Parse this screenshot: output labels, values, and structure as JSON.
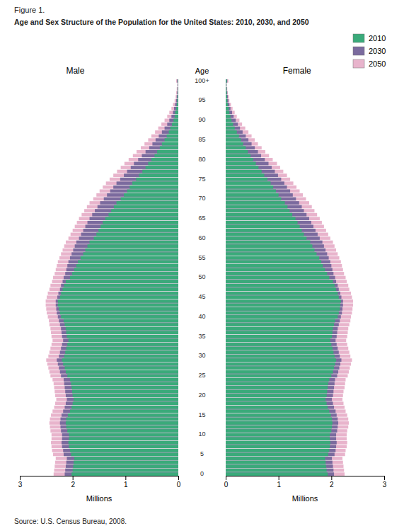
{
  "chart_data": [
    {
      "type": "bar",
      "orientation": "horizontal",
      "title": "Age and Sex Structure of the Population for the United States: 2010, 2030, and 2050",
      "annotations": [
        "Figure 1.",
        "Source: U.S. Census Bureau, 2008."
      ],
      "subtitle": "Male",
      "xlabel": "Millions",
      "ylabel": "Age",
      "xlim": [
        3,
        0
      ],
      "xticks": [
        0,
        1,
        2,
        3
      ],
      "legend": false,
      "categories": [
        "0",
        null,
        null,
        null,
        null,
        "5",
        null,
        null,
        null,
        null,
        "10",
        null,
        null,
        null,
        null,
        "15",
        null,
        null,
        null,
        null,
        "20",
        null,
        null,
        null,
        null,
        "25",
        null,
        null,
        null,
        null,
        "30",
        null,
        null,
        null,
        null,
        "35",
        null,
        null,
        null,
        null,
        "40",
        null,
        null,
        null,
        null,
        "45",
        null,
        null,
        null,
        null,
        "50",
        null,
        null,
        null,
        null,
        "55",
        null,
        null,
        null,
        null,
        "60",
        null,
        null,
        null,
        null,
        "65",
        null,
        null,
        null,
        null,
        "70",
        null,
        null,
        null,
        null,
        "75",
        null,
        null,
        null,
        null,
        "80",
        null,
        null,
        null,
        null,
        "85",
        null,
        null,
        null,
        null,
        "90",
        null,
        null,
        null,
        null,
        "95",
        null,
        null,
        null,
        null,
        "100+"
      ],
      "series": [
        {
          "color": "#3aaa7a",
          "values": [
            2.02,
            2.0,
            1.99,
            1.98,
            1.97,
            2.03,
            2.05,
            2.07,
            2.08,
            2.07,
            2.07,
            2.1,
            2.12,
            2.13,
            2.12,
            2.09,
            2.05,
            2.02,
            2.0,
            1.98,
            2.0,
            2.01,
            2.02,
            2.03,
            2.05,
            2.1,
            2.13,
            2.15,
            2.18,
            2.2,
            2.16,
            2.14,
            2.12,
            2.1,
            2.08,
            2.11,
            2.12,
            2.13,
            2.15,
            2.17,
            2.22,
            2.24,
            2.26,
            2.28,
            2.28,
            2.24,
            2.22,
            2.19,
            2.16,
            2.13,
            2.05,
            2.01,
            1.97,
            1.93,
            1.9,
            1.85,
            1.8,
            1.76,
            1.72,
            1.68,
            1.6,
            1.55,
            1.51,
            1.47,
            1.43,
            1.38,
            1.32,
            1.27,
            1.22,
            1.17,
            1.09,
            1.03,
            0.97,
            0.92,
            0.87,
            0.8,
            0.74,
            0.68,
            0.62,
            0.57,
            0.51,
            0.45,
            0.4,
            0.35,
            0.31,
            0.26,
            0.22,
            0.18,
            0.15,
            0.12,
            0.09,
            0.07,
            0.06,
            0.04,
            0.03,
            0.02,
            0.015,
            0.01,
            0.008,
            0.005,
            0.01
          ]
        },
        {
          "color": "#7b6b9e",
          "values": [
            2.15,
            2.14,
            2.13,
            2.12,
            2.11,
            2.17,
            2.18,
            2.2,
            2.21,
            2.2,
            2.2,
            2.22,
            2.23,
            2.24,
            2.23,
            2.21,
            2.18,
            2.15,
            2.13,
            2.11,
            2.13,
            2.14,
            2.15,
            2.16,
            2.17,
            2.22,
            2.24,
            2.26,
            2.28,
            2.3,
            2.26,
            2.24,
            2.22,
            2.2,
            2.18,
            2.2,
            2.21,
            2.22,
            2.24,
            2.26,
            2.28,
            2.3,
            2.31,
            2.32,
            2.32,
            2.29,
            2.27,
            2.24,
            2.22,
            2.19,
            2.17,
            2.14,
            2.12,
            2.1,
            2.08,
            2.05,
            2.02,
            1.99,
            1.96,
            1.93,
            1.88,
            1.84,
            1.8,
            1.76,
            1.72,
            1.68,
            1.63,
            1.58,
            1.53,
            1.48,
            1.41,
            1.35,
            1.29,
            1.23,
            1.17,
            1.1,
            1.03,
            0.97,
            0.9,
            0.84,
            0.76,
            0.69,
            0.62,
            0.55,
            0.49,
            0.43,
            0.37,
            0.31,
            0.26,
            0.21,
            0.17,
            0.13,
            0.1,
            0.08,
            0.06,
            0.04,
            0.03,
            0.02,
            0.015,
            0.01,
            0.02
          ]
        },
        {
          "color": "#e8b4cc",
          "values": [
            2.36,
            2.35,
            2.34,
            2.33,
            2.32,
            2.37,
            2.39,
            2.4,
            2.41,
            2.4,
            2.4,
            2.42,
            2.43,
            2.44,
            2.43,
            2.41,
            2.38,
            2.35,
            2.33,
            2.31,
            2.33,
            2.34,
            2.35,
            2.36,
            2.38,
            2.42,
            2.44,
            2.46,
            2.48,
            2.5,
            2.46,
            2.44,
            2.42,
            2.4,
            2.38,
            2.4,
            2.41,
            2.42,
            2.44,
            2.45,
            2.47,
            2.49,
            2.5,
            2.51,
            2.51,
            2.49,
            2.47,
            2.44,
            2.42,
            2.39,
            2.37,
            2.34,
            2.32,
            2.3,
            2.28,
            2.25,
            2.22,
            2.19,
            2.16,
            2.13,
            2.08,
            2.04,
            2.0,
            1.96,
            1.92,
            1.88,
            1.83,
            1.78,
            1.73,
            1.68,
            1.61,
            1.55,
            1.49,
            1.43,
            1.37,
            1.3,
            1.23,
            1.16,
            1.09,
            1.02,
            0.94,
            0.86,
            0.79,
            0.71,
            0.64,
            0.57,
            0.51,
            0.44,
            0.38,
            0.32,
            0.26,
            0.21,
            0.17,
            0.13,
            0.1,
            0.07,
            0.05,
            0.04,
            0.03,
            0.02,
            0.04
          ]
        }
      ]
    },
    {
      "type": "bar",
      "orientation": "horizontal",
      "subtitle": "Female",
      "xlabel": "Millions",
      "xlim": [
        0,
        3
      ],
      "xticks": [
        0,
        1,
        2,
        3
      ],
      "legend": "upper right",
      "categories": [
        "0",
        null,
        null,
        null,
        null,
        "5",
        null,
        null,
        null,
        null,
        "10",
        null,
        null,
        null,
        null,
        "15",
        null,
        null,
        null,
        null,
        "20",
        null,
        null,
        null,
        null,
        "25",
        null,
        null,
        null,
        null,
        "30",
        null,
        null,
        null,
        null,
        "35",
        null,
        null,
        null,
        null,
        "40",
        null,
        null,
        null,
        null,
        "45",
        null,
        null,
        null,
        null,
        "50",
        null,
        null,
        null,
        null,
        "55",
        null,
        null,
        null,
        null,
        "60",
        null,
        null,
        null,
        null,
        "65",
        null,
        null,
        null,
        null,
        "70",
        null,
        null,
        null,
        null,
        "75",
        null,
        null,
        null,
        null,
        "80",
        null,
        null,
        null,
        null,
        "85",
        null,
        null,
        null,
        null,
        "90",
        null,
        null,
        null,
        null,
        "95",
        null,
        null,
        null,
        null,
        "100+"
      ],
      "series": [
        {
          "name": "2010",
          "color": "#3aaa7a",
          "values": [
            1.93,
            1.91,
            1.9,
            1.89,
            1.88,
            1.94,
            1.96,
            1.97,
            1.98,
            1.97,
            1.97,
            2.0,
            2.01,
            2.02,
            2.01,
            1.99,
            1.96,
            1.93,
            1.91,
            1.89,
            1.91,
            1.92,
            1.93,
            1.94,
            1.96,
            2.0,
            2.03,
            2.05,
            2.07,
            2.09,
            2.06,
            2.04,
            2.02,
            2.0,
            1.98,
            2.01,
            2.02,
            2.03,
            2.05,
            2.07,
            2.12,
            2.14,
            2.16,
            2.17,
            2.18,
            2.14,
            2.12,
            2.09,
            2.06,
            2.03,
            1.96,
            1.92,
            1.88,
            1.84,
            1.81,
            1.77,
            1.72,
            1.68,
            1.64,
            1.6,
            1.53,
            1.48,
            1.44,
            1.4,
            1.36,
            1.32,
            1.26,
            1.21,
            1.17,
            1.12,
            1.05,
            1.0,
            0.95,
            0.9,
            0.85,
            0.79,
            0.73,
            0.68,
            0.62,
            0.57,
            0.52,
            0.47,
            0.42,
            0.38,
            0.33,
            0.29,
            0.25,
            0.21,
            0.17,
            0.14,
            0.11,
            0.09,
            0.07,
            0.06,
            0.04,
            0.03,
            0.025,
            0.02,
            0.015,
            0.01,
            0.02
          ]
        },
        {
          "name": "2030",
          "color": "#7b6b9e",
          "values": [
            2.05,
            2.04,
            2.03,
            2.02,
            2.01,
            2.06,
            2.08,
            2.09,
            2.1,
            2.09,
            2.09,
            2.11,
            2.12,
            2.13,
            2.12,
            2.1,
            2.08,
            2.05,
            2.03,
            2.01,
            2.03,
            2.04,
            2.05,
            2.06,
            2.07,
            2.11,
            2.13,
            2.15,
            2.17,
            2.19,
            2.16,
            2.14,
            2.12,
            2.1,
            2.08,
            2.1,
            2.11,
            2.12,
            2.14,
            2.16,
            2.18,
            2.2,
            2.21,
            2.22,
            2.22,
            2.19,
            2.17,
            2.14,
            2.12,
            2.09,
            2.07,
            2.04,
            2.02,
            2.0,
            1.98,
            1.95,
            1.92,
            1.89,
            1.86,
            1.83,
            1.78,
            1.74,
            1.7,
            1.66,
            1.62,
            1.58,
            1.53,
            1.48,
            1.44,
            1.39,
            1.33,
            1.27,
            1.22,
            1.16,
            1.11,
            1.05,
            0.99,
            0.93,
            0.87,
            0.81,
            0.74,
            0.67,
            0.61,
            0.55,
            0.49,
            0.43,
            0.38,
            0.32,
            0.27,
            0.23,
            0.19,
            0.15,
            0.12,
            0.09,
            0.07,
            0.05,
            0.04,
            0.03,
            0.02,
            0.015,
            0.03
          ]
        },
        {
          "name": "2050",
          "color": "#e8b4cc",
          "values": [
            2.25,
            2.24,
            2.23,
            2.22,
            2.21,
            2.26,
            2.27,
            2.29,
            2.3,
            2.29,
            2.29,
            2.3,
            2.32,
            2.33,
            2.32,
            2.3,
            2.27,
            2.25,
            2.23,
            2.21,
            2.22,
            2.23,
            2.25,
            2.26,
            2.27,
            2.31,
            2.33,
            2.35,
            2.37,
            2.39,
            2.36,
            2.34,
            2.32,
            2.3,
            2.28,
            2.3,
            2.31,
            2.32,
            2.34,
            2.36,
            2.37,
            2.39,
            2.4,
            2.41,
            2.41,
            2.39,
            2.37,
            2.34,
            2.32,
            2.29,
            2.27,
            2.24,
            2.22,
            2.2,
            2.18,
            2.15,
            2.12,
            2.09,
            2.06,
            2.03,
            1.98,
            1.94,
            1.9,
            1.86,
            1.82,
            1.78,
            1.73,
            1.68,
            1.63,
            1.58,
            1.52,
            1.46,
            1.4,
            1.34,
            1.28,
            1.22,
            1.16,
            1.09,
            1.03,
            0.97,
            0.89,
            0.82,
            0.75,
            0.68,
            0.61,
            0.55,
            0.49,
            0.43,
            0.37,
            0.31,
            0.26,
            0.21,
            0.17,
            0.13,
            0.1,
            0.07,
            0.06,
            0.04,
            0.03,
            0.02,
            0.05
          ]
        }
      ]
    }
  ]
}
